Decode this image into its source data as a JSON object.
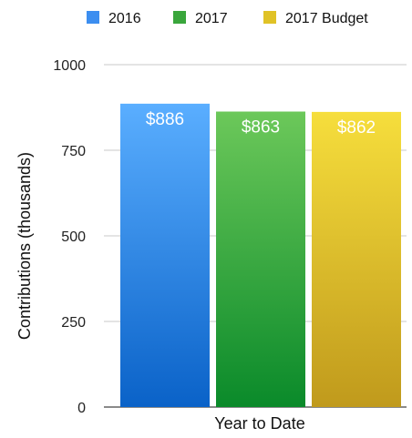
{
  "chart_data": {
    "type": "bar",
    "categories": [
      "Year to Date"
    ],
    "series": [
      {
        "name": "2016",
        "values": [
          886
        ],
        "label": "$886",
        "color_top": "#5aaeff",
        "color_bottom": "#0a62c8",
        "legend_color": "#3c8ef0"
      },
      {
        "name": "2017",
        "values": [
          863
        ],
        "label": "$863",
        "color_top": "#6cc85a",
        "color_bottom": "#0a8a2a",
        "legend_color": "#3aa63c"
      },
      {
        "name": "2017 Budget",
        "values": [
          862
        ],
        "label": "$862",
        "color_top": "#f6de3c",
        "color_bottom": "#c09a1c",
        "legend_color": "#e0c226"
      }
    ],
    "title": "",
    "xlabel": "Year to Date",
    "ylabel": "Contributions (thousands)",
    "ylim": [
      0,
      1000
    ],
    "yticks": [
      0,
      250,
      500,
      750,
      1000
    ],
    "grid": true,
    "legend": "top"
  }
}
